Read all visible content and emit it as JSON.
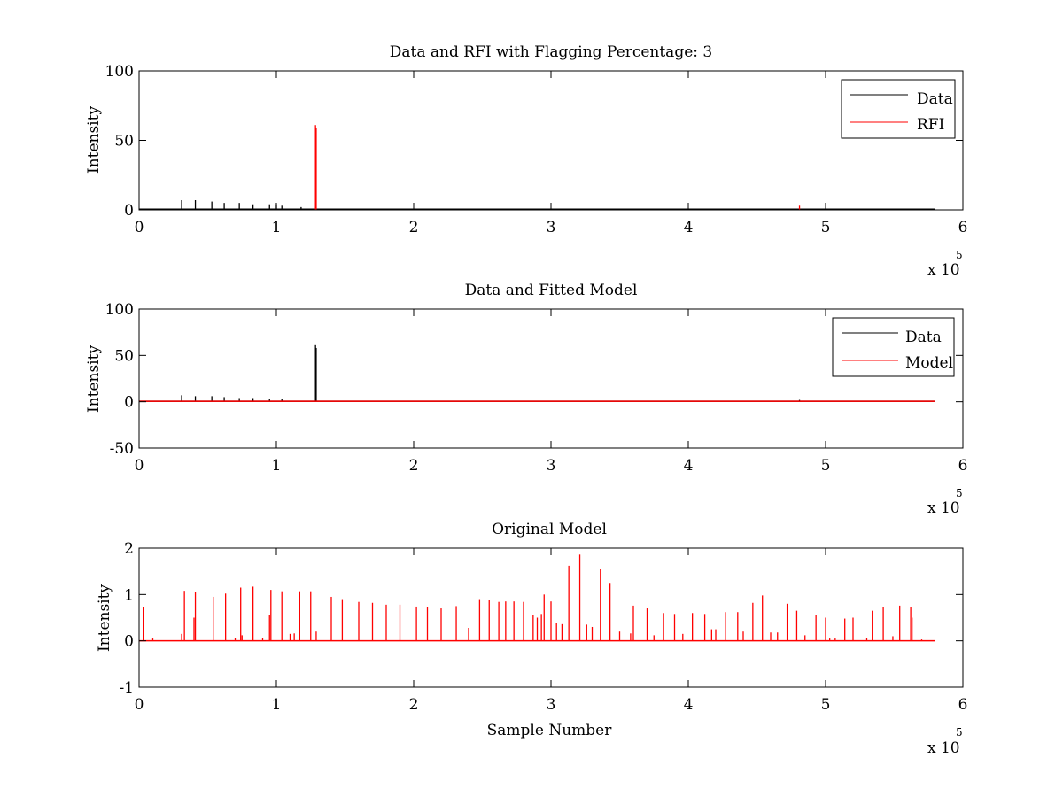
{
  "chart_data": [
    {
      "type": "line",
      "title": "Data and RFI with Flagging Percentage: 3",
      "xlabel": "",
      "ylabel": "Intensity",
      "xlim": [
        0,
        6
      ],
      "ylim": [
        0,
        100
      ],
      "xticks": [
        "0",
        "1",
        "2",
        "3",
        "4",
        "5",
        "6"
      ],
      "yticks": [
        "0",
        "50",
        "100"
      ],
      "x_multiplier": {
        "base": "x 10",
        "exp": "5"
      },
      "grid": false,
      "legend_position": "top-right",
      "legend": [
        "Data",
        "RFI"
      ],
      "series": [
        {
          "name": "Data",
          "color": "#000000",
          "baseline": 0.5,
          "x_end": 5.8,
          "spikes": [
            [
              0.31,
              7
            ],
            [
              0.41,
              7
            ],
            [
              0.53,
              6
            ],
            [
              0.62,
              5
            ],
            [
              0.73,
              5
            ],
            [
              0.83,
              4
            ],
            [
              0.95,
              4
            ],
            [
              1.0,
              4
            ],
            [
              1.04,
              3
            ],
            [
              1.18,
              2
            ]
          ]
        },
        {
          "name": "RFI",
          "color": "#ff0000",
          "baseline": null,
          "x_end": 5.8,
          "spikes": [
            [
              1.285,
              61
            ],
            [
              1.29,
              59
            ],
            [
              4.81,
              3
            ]
          ]
        }
      ]
    },
    {
      "type": "line",
      "title": "Data and Fitted Model",
      "xlabel": "",
      "ylabel": "Intensity",
      "xlim": [
        0,
        6
      ],
      "ylim": [
        -50,
        100
      ],
      "xticks": [
        "0",
        "1",
        "2",
        "3",
        "4",
        "5",
        "6"
      ],
      "yticks": [
        "-50",
        "0",
        "50",
        "100"
      ],
      "x_multiplier": {
        "base": "x 10",
        "exp": "5"
      },
      "grid": false,
      "legend_position": "top-right",
      "legend": [
        "Data",
        "Model"
      ],
      "series": [
        {
          "name": "Data",
          "color": "#000000",
          "baseline": 0.5,
          "x_end": 5.8,
          "spikes": [
            [
              0.31,
              7
            ],
            [
              0.41,
              6
            ],
            [
              0.53,
              6
            ],
            [
              0.62,
              5
            ],
            [
              0.73,
              4
            ],
            [
              0.83,
              4
            ],
            [
              0.95,
              3
            ],
            [
              1.04,
              3
            ],
            [
              1.285,
              61
            ],
            [
              1.29,
              58
            ],
            [
              4.81,
              2
            ]
          ]
        },
        {
          "name": "Model",
          "color": "#ff0000",
          "baseline": 0.5,
          "x_end": 5.8,
          "spikes": []
        }
      ]
    },
    {
      "type": "line",
      "title": "Original Model",
      "xlabel": "Sample Number",
      "ylabel": "Intensity",
      "xlim": [
        0,
        6
      ],
      "ylim": [
        -1,
        2
      ],
      "xticks": [
        "0",
        "1",
        "2",
        "3",
        "4",
        "5",
        "6"
      ],
      "yticks": [
        "-1",
        "0",
        "1",
        "2"
      ],
      "x_multiplier": {
        "base": "x 10",
        "exp": "5"
      },
      "grid": false,
      "legend_position": "none",
      "legend": [],
      "series": [
        {
          "color": "#ff0000",
          "baseline": 0.0,
          "x_end": 5.8,
          "spikes": [
            [
              0.03,
              0.72
            ],
            [
              0.1,
              0.05
            ],
            [
              0.31,
              0.15
            ],
            [
              0.33,
              1.08
            ],
            [
              0.4,
              0.5
            ],
            [
              0.41,
              1.06
            ],
            [
              0.54,
              0.95
            ],
            [
              0.63,
              1.02
            ],
            [
              0.7,
              0.06
            ],
            [
              0.74,
              1.15
            ],
            [
              0.75,
              0.12
            ],
            [
              0.83,
              1.17
            ],
            [
              0.9,
              0.06
            ],
            [
              0.95,
              0.56
            ],
            [
              0.96,
              1.1
            ],
            [
              1.04,
              1.07
            ],
            [
              1.1,
              0.15
            ],
            [
              1.13,
              0.16
            ],
            [
              1.17,
              1.07
            ],
            [
              1.25,
              1.07
            ],
            [
              1.29,
              0.2
            ],
            [
              1.4,
              0.95
            ],
            [
              1.48,
              0.9
            ],
            [
              1.6,
              0.84
            ],
            [
              1.7,
              0.82
            ],
            [
              1.8,
              0.78
            ],
            [
              1.9,
              0.78
            ],
            [
              2.02,
              0.74
            ],
            [
              2.1,
              0.72
            ],
            [
              2.2,
              0.7
            ],
            [
              2.31,
              0.75
            ],
            [
              2.4,
              0.28
            ],
            [
              2.48,
              0.9
            ],
            [
              2.55,
              0.88
            ],
            [
              2.62,
              0.84
            ],
            [
              2.67,
              0.85
            ],
            [
              2.73,
              0.85
            ],
            [
              2.8,
              0.84
            ],
            [
              2.87,
              0.55
            ],
            [
              2.9,
              0.5
            ],
            [
              2.93,
              0.58
            ],
            [
              2.95,
              1.0
            ],
            [
              3.0,
              0.85
            ],
            [
              3.04,
              0.38
            ],
            [
              3.08,
              0.36
            ],
            [
              3.13,
              1.62
            ],
            [
              3.21,
              1.86
            ],
            [
              3.26,
              0.35
            ],
            [
              3.3,
              0.3
            ],
            [
              3.36,
              1.55
            ],
            [
              3.43,
              1.25
            ],
            [
              3.5,
              0.2
            ],
            [
              3.58,
              0.16
            ],
            [
              3.6,
              0.76
            ],
            [
              3.7,
              0.7
            ],
            [
              3.75,
              0.12
            ],
            [
              3.82,
              0.6
            ],
            [
              3.9,
              0.58
            ],
            [
              3.96,
              0.15
            ],
            [
              4.03,
              0.6
            ],
            [
              4.12,
              0.58
            ],
            [
              4.17,
              0.25
            ],
            [
              4.2,
              0.25
            ],
            [
              4.27,
              0.62
            ],
            [
              4.36,
              0.62
            ],
            [
              4.4,
              0.2
            ],
            [
              4.47,
              0.82
            ],
            [
              4.54,
              0.98
            ],
            [
              4.6,
              0.18
            ],
            [
              4.65,
              0.18
            ],
            [
              4.72,
              0.8
            ],
            [
              4.79,
              0.65
            ],
            [
              4.85,
              0.12
            ],
            [
              4.93,
              0.55
            ],
            [
              5.0,
              0.5
            ],
            [
              5.03,
              0.05
            ],
            [
              5.07,
              0.05
            ],
            [
              5.14,
              0.48
            ],
            [
              5.2,
              0.5
            ],
            [
              5.3,
              0.06
            ],
            [
              5.34,
              0.65
            ],
            [
              5.42,
              0.72
            ],
            [
              5.49,
              0.1
            ],
            [
              5.54,
              0.76
            ],
            [
              5.62,
              0.72
            ],
            [
              5.63,
              0.5
            ],
            [
              5.7,
              0.03
            ]
          ]
        }
      ]
    }
  ]
}
